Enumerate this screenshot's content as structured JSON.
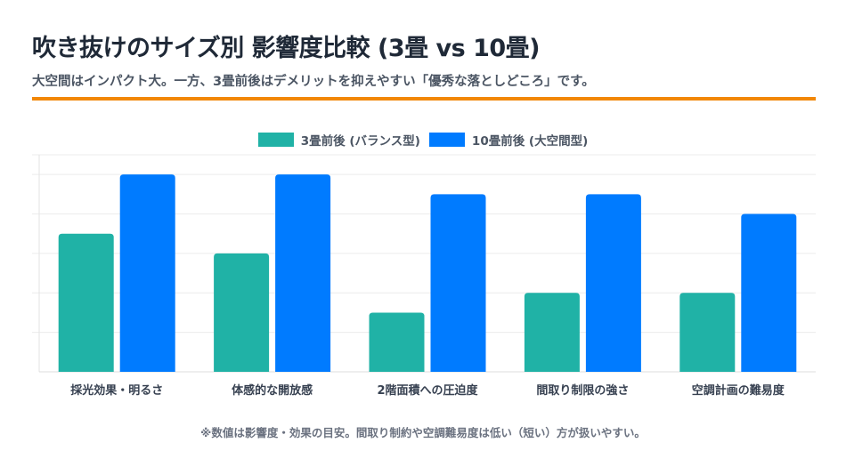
{
  "header": {
    "title": "吹き抜けのサイズ別 影響度比較 (3畳 vs 10畳)",
    "subtitle": "大空間はインパクト大。一方、3畳前後はデメリットを抑えやすい「優秀な落としどころ」です。",
    "accent_color": "#f28705"
  },
  "chart_data": {
    "type": "bar",
    "categories": [
      "採光効果・明るさ",
      "体感的な開放感",
      "2階面積への圧迫度",
      "間取り制限の強さ",
      "空調計画の難易度"
    ],
    "series": [
      {
        "name": "3畳前後 (バランス型)",
        "color": "#20b2a6",
        "values": [
          3.5,
          3,
          1.5,
          2,
          2
        ]
      },
      {
        "name": "10畳前後 (大空間型)",
        "color": "#007bff",
        "values": [
          5,
          5,
          4.5,
          4.5,
          4
        ]
      }
    ],
    "ylim": [
      0,
      5.5
    ],
    "y_ticks_labeled": false,
    "grid": true,
    "legend_position": "top-center"
  },
  "footer": {
    "note": "※数値は影響度・効果の目安。間取り制約や空調難易度は低い（短い）方が扱いやすい。"
  }
}
